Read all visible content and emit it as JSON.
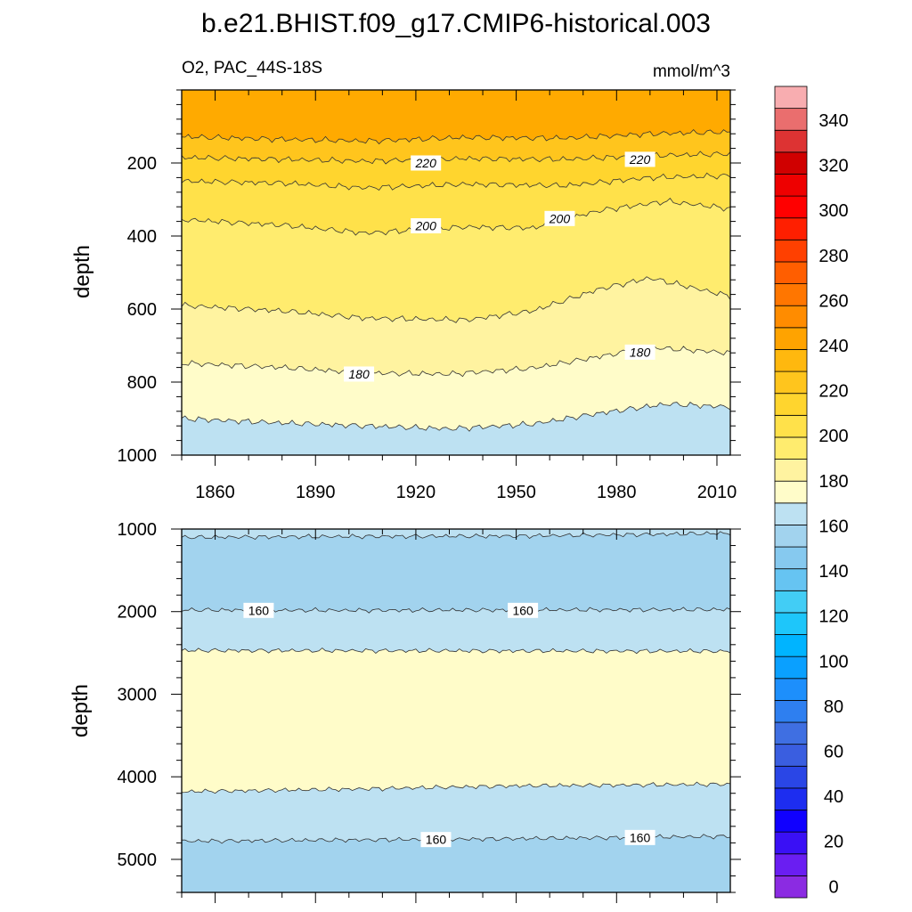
{
  "chart_data": {
    "type": "heatmap",
    "title": "b.e21.BHIST.f09_g17.CMIP6-historical.003",
    "subtitle_left": "O2, PAC_44S-18S",
    "subtitle_right": "mmol/m^3",
    "x_range": [
      1850,
      2014
    ],
    "x_ticks": [
      1860,
      1890,
      1920,
      1950,
      1980,
      2010
    ],
    "x_tick_labels": [
      "1860",
      "1890",
      "1920",
      "1950",
      "1980",
      "2010"
    ],
    "panels": [
      {
        "name": "upper",
        "ylabel": "depth",
        "y_range": [
          0,
          1000
        ],
        "y_ticks": [
          200,
          400,
          600,
          800,
          1000
        ],
        "y_tick_labels": [
          "200",
          "400",
          "600",
          "800",
          "1000"
        ],
        "band_colors_top_to_bottom": [
          "#ffaa00",
          "#ffc51d",
          "#ffd52e",
          "#ffe14a",
          "#ffec6e",
          "#fff3a0",
          "#fffcc9",
          "#bde1f2"
        ],
        "contours": [
          {
            "level": 230,
            "depth": [
              [
                1850,
                128
              ],
              [
                1880,
                135
              ],
              [
                1905,
                140
              ],
              [
                1935,
                130
              ],
              [
                1965,
                132
              ],
              [
                1990,
                120
              ],
              [
                2014,
                115
              ]
            ]
          },
          {
            "level": 220,
            "depth": [
              [
                1850,
                185
              ],
              [
                1880,
                190
              ],
              [
                1905,
                195
              ],
              [
                1935,
                188
              ],
              [
                1965,
                190
              ],
              [
                1990,
                180
              ],
              [
                2014,
                175
              ]
            ]
          },
          {
            "level": 210,
            "depth": [
              [
                1850,
                250
              ],
              [
                1880,
                255
              ],
              [
                1905,
                268
              ],
              [
                1935,
                258
              ],
              [
                1965,
                262
              ],
              [
                1990,
                240
              ],
              [
                2014,
                235
              ]
            ]
          },
          {
            "level": 200,
            "depth": [
              [
                1850,
                355
              ],
              [
                1880,
                370
              ],
              [
                1905,
                392
              ],
              [
                1935,
                375
              ],
              [
                1955,
                378
              ],
              [
                1975,
                330
              ],
              [
                1995,
                305
              ],
              [
                2014,
                325
              ]
            ]
          },
          {
            "level": 190,
            "depth": [
              [
                1850,
                590
              ],
              [
                1880,
                605
              ],
              [
                1905,
                625
              ],
              [
                1935,
                630
              ],
              [
                1955,
                605
              ],
              [
                1975,
                545
              ],
              [
                1990,
                515
              ],
              [
                2014,
                565
              ]
            ]
          },
          {
            "level": 180,
            "depth": [
              [
                1850,
                748
              ],
              [
                1880,
                760
              ],
              [
                1905,
                775
              ],
              [
                1930,
                778
              ],
              [
                1955,
                762
              ],
              [
                1975,
                730
              ],
              [
                1990,
                705
              ],
              [
                2014,
                720
              ]
            ]
          },
          {
            "level": 170,
            "depth": [
              [
                1850,
                900
              ],
              [
                1880,
                912
              ],
              [
                1905,
                920
              ],
              [
                1930,
                928
              ],
              [
                1955,
                915
              ],
              [
                1975,
                885
              ],
              [
                1995,
                860
              ],
              [
                2014,
                868
              ]
            ]
          }
        ],
        "contour_labels": [
          {
            "text": "220",
            "year": 1923,
            "depth": 200
          },
          {
            "text": "220",
            "year": 1987,
            "depth": 190
          },
          {
            "text": "200",
            "year": 1923,
            "depth": 372
          },
          {
            "text": "200",
            "year": 1963,
            "depth": 352
          },
          {
            "text": "180",
            "year": 1903,
            "depth": 778
          },
          {
            "text": "180",
            "year": 1987,
            "depth": 718
          }
        ]
      },
      {
        "name": "lower",
        "ylabel": "depth",
        "y_range": [
          1000,
          5400
        ],
        "y_ticks": [
          1000,
          2000,
          3000,
          4000,
          5000
        ],
        "y_tick_labels": [
          "1000",
          "2000",
          "3000",
          "4000",
          "5000"
        ],
        "band_colors_top_to_bottom": [
          "#bde1f2",
          "#a2d3ee",
          "#bde1f2",
          "#fffcc9",
          "#bde1f2",
          "#a2d3ee"
        ],
        "contours": [
          {
            "level": 170,
            "depth": [
              [
                1850,
                1100
              ],
              [
                1900,
                1090
              ],
              [
                1950,
                1085
              ],
              [
                1990,
                1065
              ],
              [
                2014,
                1050
              ]
            ]
          },
          {
            "level": 160,
            "depth": [
              [
                1850,
                1980
              ],
              [
                1900,
                1985
              ],
              [
                1950,
                1980
              ],
              [
                2014,
                1975
              ]
            ]
          },
          {
            "level": 170,
            "depth": [
              [
                1850,
                2470
              ],
              [
                1950,
                2475
              ],
              [
                2014,
                2480
              ]
            ]
          },
          {
            "level": 170,
            "depth": [
              [
                1850,
                4180
              ],
              [
                1900,
                4150
              ],
              [
                1950,
                4110
              ],
              [
                2014,
                4090
              ]
            ]
          },
          {
            "level": 160,
            "depth": [
              [
                1850,
                4780
              ],
              [
                1900,
                4765
              ],
              [
                1950,
                4750
              ],
              [
                2014,
                4720
              ]
            ]
          }
        ],
        "contour_labels": [
          {
            "text": "160",
            "year": 1873,
            "depth": 1985
          },
          {
            "text": "160",
            "year": 1952,
            "depth": 1985
          },
          {
            "text": "160",
            "year": 1926,
            "depth": 4760
          },
          {
            "text": "160",
            "year": 1987,
            "depth": 4735
          }
        ]
      }
    ],
    "colorbar": {
      "levels": [
        -5,
        5,
        15,
        25,
        35,
        45,
        55,
        65,
        75,
        85,
        95,
        105,
        115,
        125,
        135,
        145,
        155,
        165,
        175,
        185,
        195,
        205,
        215,
        225,
        235,
        245,
        255,
        265,
        275,
        285,
        295,
        305,
        315,
        325,
        335,
        345,
        355
      ],
      "colors": [
        "#8b2be2",
        "#6a1ef2",
        "#3a10f5",
        "#1000ff",
        "#1d2df0",
        "#2a46e6",
        "#3a5ee0",
        "#3f6fe2",
        "#2e7ff0",
        "#1d8ffc",
        "#0aa0ff",
        "#00b4ff",
        "#1ec6fa",
        "#42cdf5",
        "#66c4f2",
        "#86c9ef",
        "#a2d3ee",
        "#bde1f2",
        "#fffcc9",
        "#fff3a0",
        "#ffec6e",
        "#ffe14a",
        "#ffd52e",
        "#ffc51d",
        "#ffb80e",
        "#ffa300",
        "#ff8c00",
        "#ff7600",
        "#ff5e00",
        "#ff4000",
        "#ff1f00",
        "#ff0000",
        "#ee0000",
        "#d00000",
        "#dd3333",
        "#ea6e6e",
        "#f8adb0"
      ],
      "tick_values": [
        0,
        20,
        40,
        60,
        80,
        100,
        120,
        140,
        160,
        180,
        200,
        220,
        240,
        260,
        280,
        300,
        320,
        340
      ],
      "tick_labels": [
        "0",
        "20",
        "40",
        "60",
        "80",
        "100",
        "120",
        "140",
        "160",
        "180",
        "200",
        "220",
        "240",
        "260",
        "280",
        "300",
        "320",
        "340"
      ]
    }
  }
}
